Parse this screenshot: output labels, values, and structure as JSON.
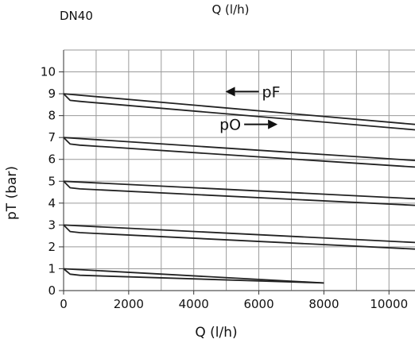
{
  "chart_data": {
    "type": "line",
    "title": "DN40",
    "top_label": "Q (l/h)",
    "xlabel": "Q (l/h)",
    "ylabel": "pT (bar)",
    "xlim": [
      0,
      10800
    ],
    "ylim": [
      0,
      11
    ],
    "x_ticks": [
      0,
      2000,
      4000,
      6000,
      8000,
      10000
    ],
    "y_ticks": [
      0,
      1,
      2,
      3,
      4,
      5,
      6,
      7,
      8,
      9,
      10
    ],
    "grid": true,
    "annotations": [
      {
        "text": "pF",
        "arrow": "left",
        "at": [
          6000,
          9.1
        ]
      },
      {
        "text": "pO",
        "arrow": "right",
        "at": [
          5550,
          7.6
        ]
      }
    ],
    "series": [
      {
        "label": "pF",
        "level": 9,
        "x": [
          0,
          10800
        ],
        "y": [
          9.0,
          7.6
        ]
      },
      {
        "label": "pO",
        "level": 9,
        "x": [
          0,
          200,
          500,
          10800
        ],
        "y": [
          9.0,
          8.7,
          8.65,
          7.35
        ]
      },
      {
        "label": "pF",
        "level": 7,
        "x": [
          0,
          10800
        ],
        "y": [
          7.0,
          5.95
        ]
      },
      {
        "label": "pO",
        "level": 7,
        "x": [
          0,
          200,
          500,
          10800
        ],
        "y": [
          7.0,
          6.7,
          6.65,
          5.65
        ]
      },
      {
        "label": "pF",
        "level": 5,
        "x": [
          0,
          10800
        ],
        "y": [
          5.0,
          4.2
        ]
      },
      {
        "label": "pO",
        "level": 5,
        "x": [
          0,
          200,
          500,
          10800
        ],
        "y": [
          5.0,
          4.7,
          4.65,
          3.9
        ]
      },
      {
        "label": "pF",
        "level": 3,
        "x": [
          0,
          10800
        ],
        "y": [
          3.0,
          2.2
        ]
      },
      {
        "label": "pO",
        "level": 3,
        "x": [
          0,
          200,
          500,
          10800
        ],
        "y": [
          3.0,
          2.7,
          2.65,
          1.9
        ]
      },
      {
        "label": "pF",
        "level": 1,
        "x": [
          0,
          8000
        ],
        "y": [
          1.0,
          0.35
        ]
      },
      {
        "label": "pO",
        "level": 1,
        "x": [
          0,
          200,
          500,
          8000
        ],
        "y": [
          1.0,
          0.75,
          0.7,
          0.35
        ]
      }
    ],
    "colors": {
      "grid": "#9a9a9a",
      "line": "#222222",
      "text": "#111111"
    }
  }
}
